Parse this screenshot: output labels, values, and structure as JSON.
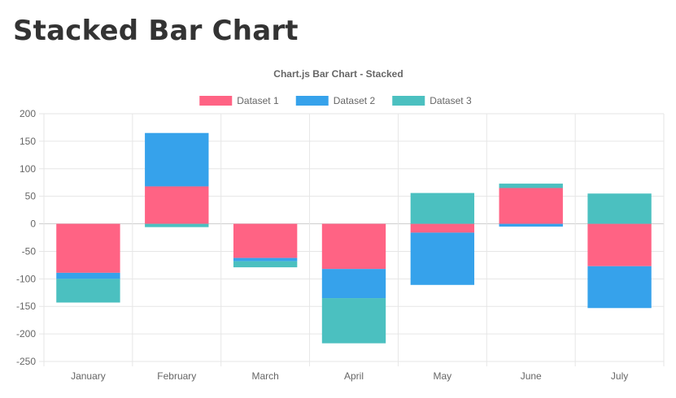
{
  "page": {
    "title": "Stacked Bar Chart"
  },
  "chart_data": {
    "type": "bar",
    "stacked": true,
    "title": "Chart.js Bar Chart - Stacked",
    "legend_position": "top",
    "grid": true,
    "categories": [
      "January",
      "February",
      "March",
      "April",
      "May",
      "June",
      "July"
    ],
    "ylim": [
      -250,
      200
    ],
    "yticks": [
      200,
      150,
      100,
      50,
      0,
      -50,
      -100,
      -150,
      -200,
      -250
    ],
    "series": [
      {
        "name": "Dataset 1",
        "color": "#ff6384",
        "values": [
          -89,
          68,
          -62,
          -82,
          -16,
          65,
          -77
        ]
      },
      {
        "name": "Dataset 2",
        "color": "#36a2eb",
        "values": [
          -11,
          97,
          -6,
          -53,
          -95,
          -5,
          -76
        ]
      },
      {
        "name": "Dataset 3",
        "color": "#4bc0c0",
        "values": [
          -43,
          -6,
          -11,
          -82,
          56,
          8,
          55
        ]
      }
    ]
  }
}
